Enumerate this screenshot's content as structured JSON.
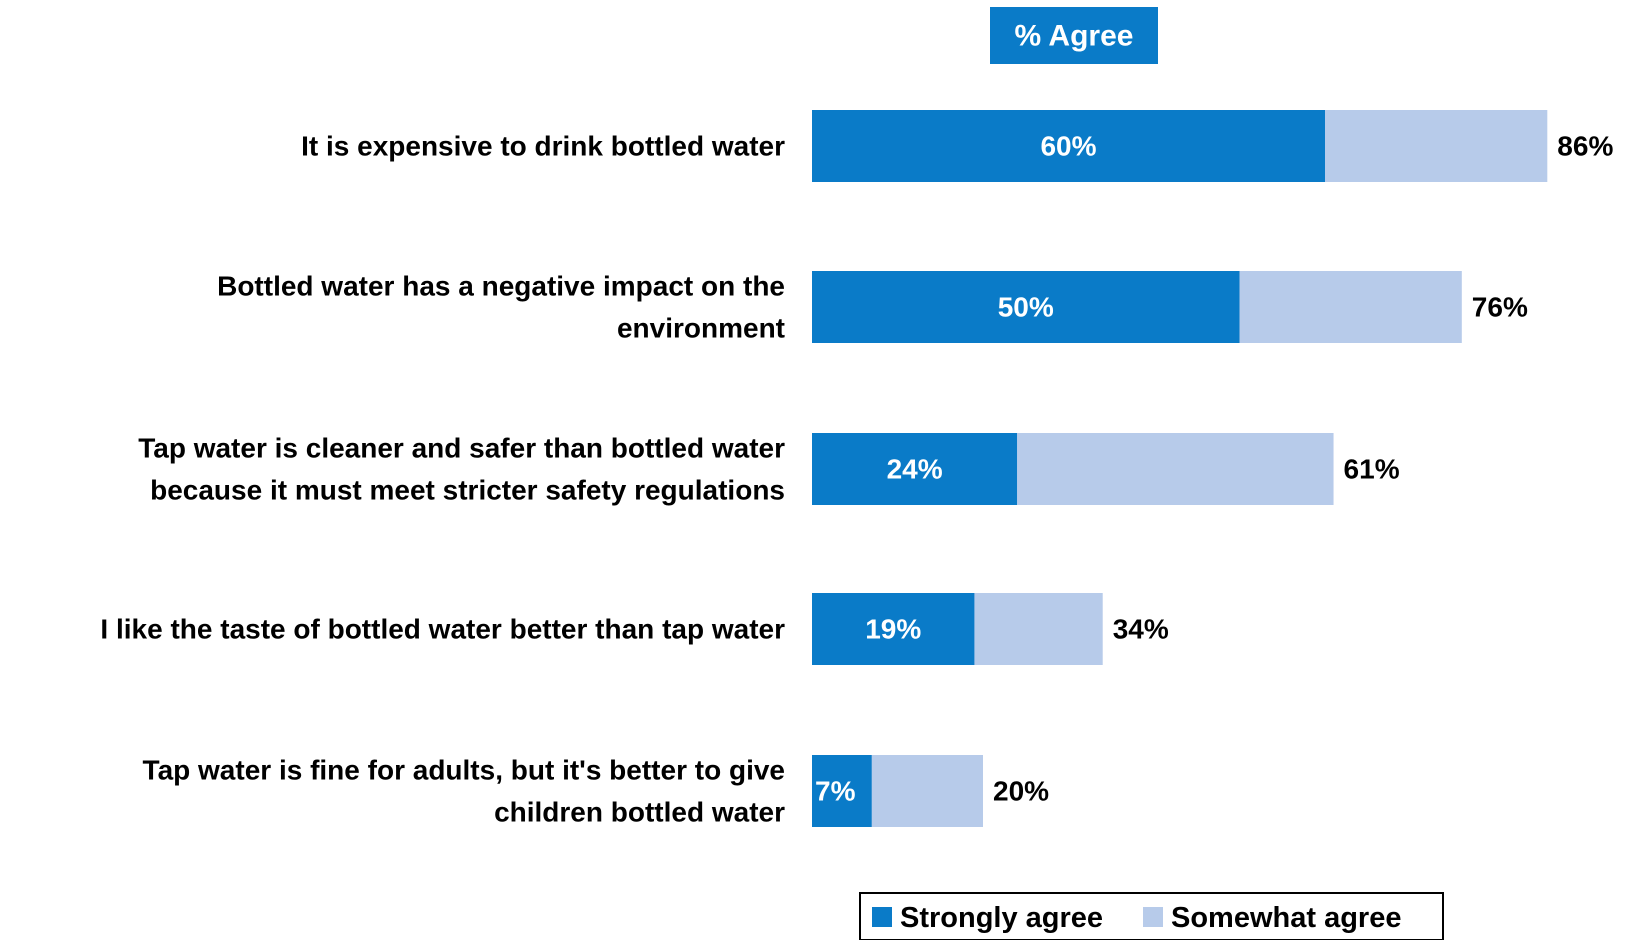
{
  "chart_data": {
    "type": "bar",
    "orientation": "horizontal",
    "stacked": true,
    "header": "% Agree",
    "categories": [
      [
        "It is expensive to drink bottled water"
      ],
      [
        "Bottled water has a negative impact on the",
        "environment"
      ],
      [
        "Tap water is cleaner and safer than bottled water",
        "because it must meet stricter safety regulations"
      ],
      [
        "I like the taste of bottled water better than tap water"
      ],
      [
        "Tap water is fine for adults, but it's better to give",
        "children bottled water"
      ]
    ],
    "series": [
      {
        "name": "Strongly agree",
        "values": [
          60,
          50,
          24,
          19,
          7
        ],
        "color": "#0a7bc8"
      },
      {
        "name": "Somewhat agree",
        "values": [
          26,
          26,
          37,
          15,
          13
        ],
        "color": "#b7cbea"
      }
    ],
    "inner_labels": [
      "60%",
      "50%",
      "24%",
      "19%",
      "7%"
    ],
    "total_labels": [
      "86%",
      "76%",
      "61%",
      "34%",
      "20%"
    ],
    "xlim": [
      0,
      100
    ],
    "grid": false,
    "legend_position": "bottom"
  }
}
